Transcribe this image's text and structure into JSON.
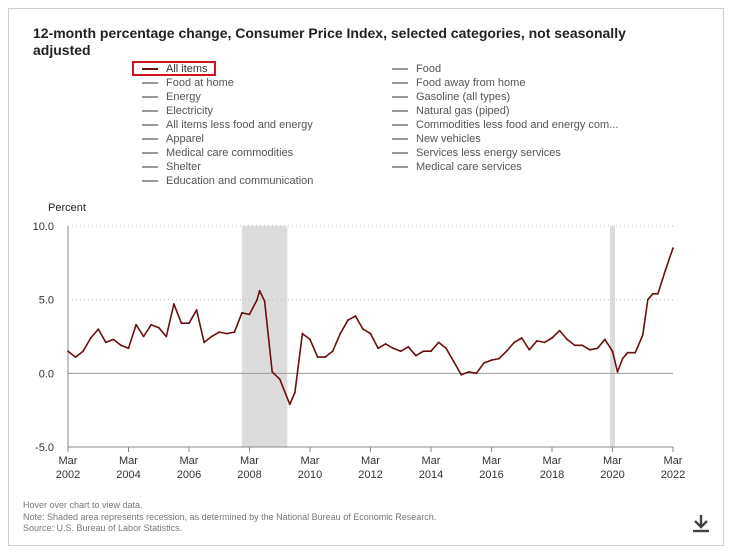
{
  "title": "12-month percentage change, Consumer Price Index, selected categories, not seasonally adjusted",
  "legend": {
    "left": [
      "All items",
      "Food at home",
      "Energy",
      "Electricity",
      "All items less food and energy",
      "Apparel",
      "Medical care commodities",
      "Shelter",
      "Education and communication"
    ],
    "right": [
      "Food",
      "Food away from home",
      "Gasoline (all types)",
      "Natural gas (piped)",
      "Commodities less food and energy com...",
      "New vehicles",
      "Services less energy services",
      "Medical care services"
    ],
    "selected": "All items"
  },
  "colors": {
    "series": "#6b0f0f",
    "inactive_swatch": "#9a9a9a",
    "recession": "#dcdcdc",
    "highlight": "#d4141c"
  },
  "chart_data": {
    "type": "line",
    "ylabel": "Percent",
    "ylim": [
      -5.0,
      10.0
    ],
    "yticks": [
      "10.0",
      "5.0",
      "0.0",
      "-5.0"
    ],
    "xlim": [
      "2002-03",
      "2022-03"
    ],
    "xticks": [
      {
        "m": "Mar",
        "y": "2002"
      },
      {
        "m": "Mar",
        "y": "2004"
      },
      {
        "m": "Mar",
        "y": "2006"
      },
      {
        "m": "Mar",
        "y": "2008"
      },
      {
        "m": "Mar",
        "y": "2010"
      },
      {
        "m": "Mar",
        "y": "2012"
      },
      {
        "m": "Mar",
        "y": "2014"
      },
      {
        "m": "Mar",
        "y": "2016"
      },
      {
        "m": "Mar",
        "y": "2018"
      },
      {
        "m": "Mar",
        "y": "2020"
      },
      {
        "m": "Mar",
        "y": "2022"
      }
    ],
    "grid": "dotted horizontal",
    "recessions": [
      [
        "2007-12",
        "2009-06"
      ],
      [
        "2020-02",
        "2020-04"
      ]
    ],
    "series": [
      {
        "name": "All items",
        "x": [
          "2002-03",
          "2002-06",
          "2002-09",
          "2002-12",
          "2003-03",
          "2003-06",
          "2003-09",
          "2003-12",
          "2004-03",
          "2004-06",
          "2004-09",
          "2004-12",
          "2005-03",
          "2005-06",
          "2005-09",
          "2005-12",
          "2006-03",
          "2006-06",
          "2006-09",
          "2006-12",
          "2007-03",
          "2007-06",
          "2007-09",
          "2007-12",
          "2008-03",
          "2008-06",
          "2008-07",
          "2008-09",
          "2008-12",
          "2009-03",
          "2009-07",
          "2009-09",
          "2009-12",
          "2010-03",
          "2010-06",
          "2010-09",
          "2010-12",
          "2011-03",
          "2011-06",
          "2011-09",
          "2011-12",
          "2012-03",
          "2012-06",
          "2012-09",
          "2012-12",
          "2013-03",
          "2013-06",
          "2013-09",
          "2013-12",
          "2014-03",
          "2014-06",
          "2014-09",
          "2014-12",
          "2015-03",
          "2015-06",
          "2015-09",
          "2015-12",
          "2016-03",
          "2016-06",
          "2016-09",
          "2016-12",
          "2017-03",
          "2017-06",
          "2017-09",
          "2017-12",
          "2018-03",
          "2018-06",
          "2018-09",
          "2018-12",
          "2019-03",
          "2019-06",
          "2019-09",
          "2019-12",
          "2020-03",
          "2020-05",
          "2020-07",
          "2020-09",
          "2020-12",
          "2021-03",
          "2021-05",
          "2021-07",
          "2021-09",
          "2021-12",
          "2022-03"
        ],
        "values": [
          1.5,
          1.1,
          1.5,
          2.4,
          3.0,
          2.1,
          2.3,
          1.9,
          1.7,
          3.3,
          2.5,
          3.3,
          3.1,
          2.5,
          4.7,
          3.4,
          3.4,
          4.3,
          2.1,
          2.5,
          2.8,
          2.7,
          2.8,
          4.1,
          4.0,
          5.0,
          5.6,
          4.9,
          0.1,
          -0.4,
          -2.1,
          -1.3,
          2.7,
          2.3,
          1.1,
          1.1,
          1.5,
          2.7,
          3.6,
          3.9,
          3.0,
          2.7,
          1.7,
          2.0,
          1.7,
          1.5,
          1.8,
          1.2,
          1.5,
          1.5,
          2.1,
          1.7,
          0.8,
          -0.1,
          0.1,
          0.0,
          0.7,
          0.9,
          1.0,
          1.5,
          2.1,
          2.4,
          1.6,
          2.2,
          2.1,
          2.4,
          2.9,
          2.3,
          1.9,
          1.9,
          1.6,
          1.7,
          2.3,
          1.5,
          0.1,
          1.0,
          1.4,
          1.4,
          2.6,
          5.0,
          5.4,
          5.4,
          7.0,
          8.5
        ]
      }
    ]
  },
  "notes": [
    "Hover over chart to view data.",
    "Note: Shaded area represents recession, as determined by the National Bureau of Economic Research.",
    "Source: U.S. Bureau of Labor Statistics."
  ],
  "download_icon": "download-icon"
}
